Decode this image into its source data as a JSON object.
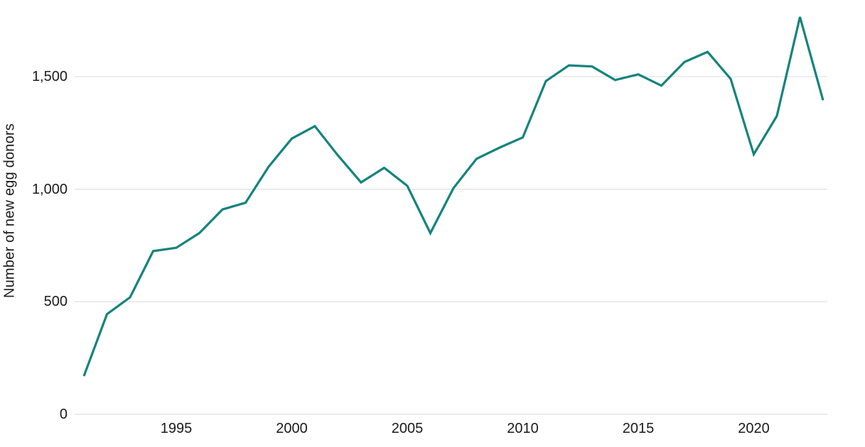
{
  "chart_data": {
    "type": "line",
    "title": "",
    "ylabel": "Number of new egg donors",
    "xlabel": "",
    "x": [
      1991,
      1992,
      1993,
      1994,
      1995,
      1996,
      1997,
      1998,
      1999,
      2000,
      2001,
      2002,
      2003,
      2004,
      2005,
      2006,
      2007,
      2008,
      2009,
      2010,
      2011,
      2012,
      2013,
      2014,
      2015,
      2016,
      2017,
      2018,
      2019,
      2020,
      2021,
      2022,
      2023
    ],
    "values": [
      170,
      445,
      520,
      725,
      740,
      805,
      910,
      940,
      1100,
      1225,
      1280,
      1150,
      1030,
      1095,
      1015,
      805,
      1005,
      1135,
      1185,
      1230,
      1480,
      1550,
      1545,
      1485,
      1510,
      1460,
      1565,
      1610,
      1490,
      1155,
      1325,
      1765,
      1395
    ],
    "xlim": [
      1991,
      2023
    ],
    "ylim": [
      0,
      1800
    ],
    "yticks": {
      "values": [
        0,
        500,
        1000,
        1500
      ],
      "labels": [
        "0",
        "500",
        "1,000",
        "1,500"
      ]
    },
    "xticks": {
      "values": [
        1995,
        2000,
        2005,
        2010,
        2015,
        2020
      ],
      "labels": [
        "1995",
        "2000",
        "2005",
        "2010",
        "2015",
        "2020"
      ]
    },
    "grid": "horizontal",
    "legend_position": "none",
    "series_name": "New egg donors",
    "line_color": "#14837D",
    "grid_color": "#E3E3E3",
    "zero_line_color": "#DEDEDE",
    "text_color": "#1A1A1A",
    "background_color": "#FFFFFF"
  }
}
